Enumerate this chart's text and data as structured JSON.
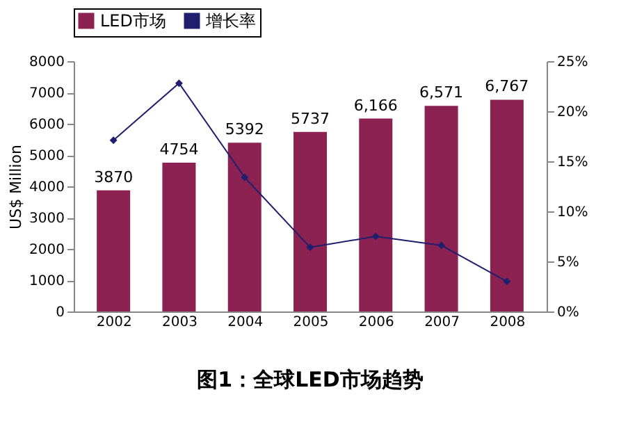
{
  "chart_data": {
    "type": "bar",
    "title": "图1：全球LED市场趋势",
    "categories": [
      "2002",
      "2003",
      "2004",
      "2005",
      "2006",
      "2007",
      "2008"
    ],
    "series": [
      {
        "name": "LED市场",
        "color": "#8b2252",
        "values": [
          3870,
          4754,
          5392,
          5737,
          6166,
          6571,
          6767
        ],
        "value_labels": [
          "3870",
          "4754",
          "5392",
          "5737",
          "6,166",
          "6,571",
          "6,767"
        ]
      },
      {
        "name": "增长率",
        "type": "line",
        "axis": "y2",
        "color": "#1f1f6e",
        "marker": "diamond",
        "values": [
          17.1,
          22.8,
          13.4,
          6.4,
          7.5,
          6.6,
          3.0
        ]
      }
    ],
    "ylabel": "US$ Million",
    "ylim": [
      0,
      8000
    ],
    "yticks": [
      0,
      1000,
      2000,
      3000,
      4000,
      5000,
      6000,
      7000,
      8000
    ],
    "y2lim": [
      0,
      25
    ],
    "y2ticks": [
      {
        "value": 0,
        "label": "0%"
      },
      {
        "value": 5,
        "label": "5%"
      },
      {
        "value": 10,
        "label": "10%"
      },
      {
        "value": 15,
        "label": "15%"
      },
      {
        "value": 20,
        "label": "20%"
      },
      {
        "value": 25,
        "label": "25%"
      }
    ],
    "legend": "top"
  }
}
